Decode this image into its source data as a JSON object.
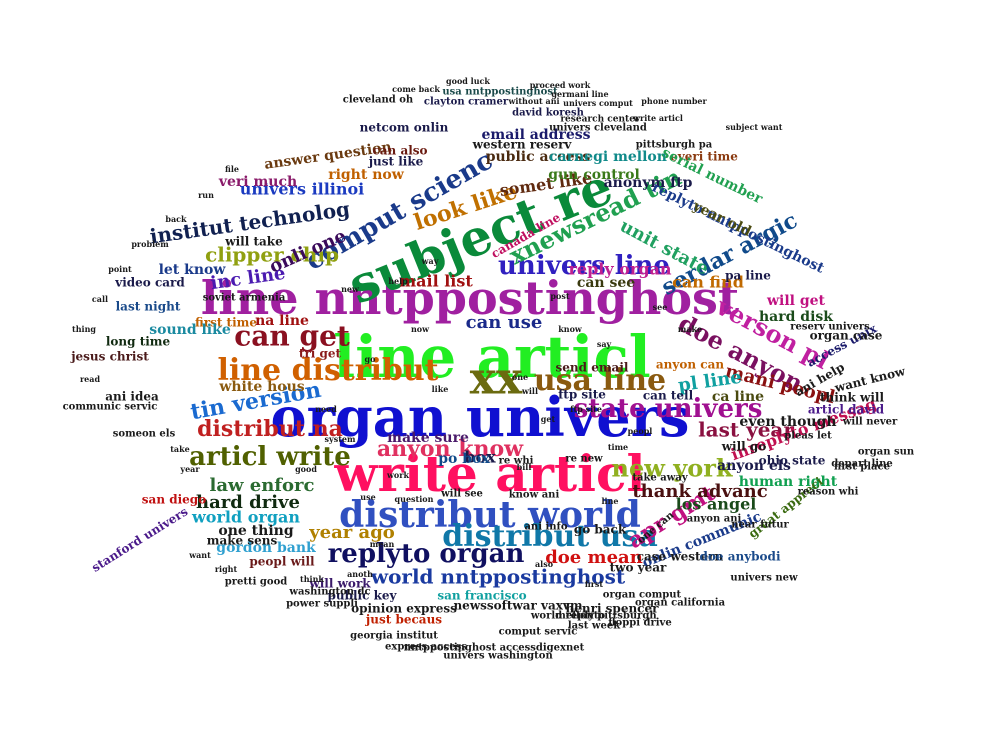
{
  "title": "",
  "words": [
    {
      "text": "line articl",
      "color": "#22ee22"
    },
    {
      "text": "line nntppostinghost",
      "color": "#a020a0"
    },
    {
      "text": "organ univers",
      "color": "#1010d0"
    },
    {
      "text": "write articl",
      "color": "#ff1060"
    },
    {
      "text": "subject re",
      "color": "#0a8a3a"
    },
    {
      "text": "distribut world",
      "color": "#3050c0"
    },
    {
      "text": "xx",
      "color": "#6b6b10"
    },
    {
      "text": "comput scienc",
      "color": "#1a3a8a"
    },
    {
      "text": "line distribut",
      "color": "#d06000"
    },
    {
      "text": "usa line",
      "color": "#8a5a10"
    },
    {
      "text": "univers line",
      "color": "#3020c0"
    },
    {
      "text": "replyto organ",
      "color": "#101060"
    },
    {
      "text": "distribut usa",
      "color": "#1078a8"
    },
    {
      "text": "can get",
      "color": "#8a1020"
    },
    {
      "text": "state univers",
      "color": "#a01090"
    },
    {
      "text": "new york",
      "color": "#90b020"
    },
    {
      "text": "articl write",
      "color": "#506000"
    },
    {
      "text": "xnewsread tin",
      "color": "#20a050"
    },
    {
      "text": "world nntppostinghost",
      "color": "#1a3aa0"
    },
    {
      "text": "doe anyon",
      "color": "#7a1060"
    },
    {
      "text": "verson pl",
      "color": "#c020a0"
    },
    {
      "text": "serdar argic",
      "color": "#104a8a"
    },
    {
      "text": "tin version",
      "color": "#1a6ad0"
    },
    {
      "text": "distribut na",
      "color": "#c02020"
    },
    {
      "text": "anyon know",
      "color": "#e03060"
    },
    {
      "text": "look like",
      "color": "#c07000"
    },
    {
      "text": "apr gmt",
      "color": "#c01080"
    },
    {
      "text": "last year",
      "color": "#8a1040"
    },
    {
      "text": "thank advanc",
      "color": "#4a1010"
    },
    {
      "text": "clipper chip",
      "color": "#90a010"
    },
    {
      "text": "institut technolog",
      "color": "#102050"
    },
    {
      "text": "unit state",
      "color": "#20a060"
    },
    {
      "text": "law enforc",
      "color": "#2a6a30"
    },
    {
      "text": "mail list",
      "color": "#a01010"
    },
    {
      "text": "doe mean",
      "color": "#d01010"
    },
    {
      "text": "year ago",
      "color": "#b08000"
    },
    {
      "text": "can use",
      "color": "#1a2a8a"
    },
    {
      "text": "hard drive",
      "color": "#102a10"
    },
    {
      "text": "somet like",
      "color": "#602a10"
    },
    {
      "text": "onli one",
      "color": "#3a0a5a"
    },
    {
      "text": "reply organ",
      "color": "#c02090"
    },
    {
      "text": "mani peopl",
      "color": "#8a1010"
    },
    {
      "text": "anyon els",
      "color": "#1a1a4a"
    },
    {
      "text": "los angel",
      "color": "#1a4a1a"
    },
    {
      "text": "inreplyto messag",
      "color": "#c01050"
    },
    {
      "text": "world organ",
      "color": "#10a0c0"
    },
    {
      "text": "gordon bank",
      "color": "#30a0d0"
    },
    {
      "text": "public access",
      "color": "#4a2a10"
    },
    {
      "text": "email address",
      "color": "#1a1a6a"
    },
    {
      "text": "carnegi mellon",
      "color": "#108a8a"
    },
    {
      "text": "gun control",
      "color": "#3a7a1a"
    },
    {
      "text": "univers illinoi",
      "color": "#1a3ac0"
    },
    {
      "text": "right now",
      "color": "#c06000"
    },
    {
      "text": "answer question",
      "color": "#6a3a10"
    },
    {
      "text": "anonym ftp",
      "color": "#1a1a4a"
    },
    {
      "text": "everi time",
      "color": "#8a3a10"
    },
    {
      "text": "make sure",
      "color": "#4a1a6a"
    },
    {
      "text": "can find",
      "color": "#c06a00"
    },
    {
      "text": "can see",
      "color": "#3a3a10"
    },
    {
      "text": "pl line",
      "color": "#10a0a0"
    },
    {
      "text": "hard disk",
      "color": "#1a4a1a"
    },
    {
      "text": "ca line",
      "color": "#4a4a10"
    },
    {
      "text": "even though",
      "color": "#1a1a1a"
    },
    {
      "text": "human right",
      "color": "#10a050"
    },
    {
      "text": "articl david",
      "color": "#4a1a8a"
    },
    {
      "text": "onlin communic",
      "color": "#1a3a8a"
    },
    {
      "text": "great appreci",
      "color": "#3a6a10"
    },
    {
      "text": "san diego",
      "color": "#c01010"
    },
    {
      "text": "san francisco",
      "color": "#10a0a0"
    },
    {
      "text": "inc line",
      "color": "#4a1ab0"
    },
    {
      "text": "white hous",
      "color": "#8a5a10"
    },
    {
      "text": "first time",
      "color": "#c06000"
    },
    {
      "text": "na line",
      "color": "#a01010"
    },
    {
      "text": "sound like",
      "color": "#1a8aa0"
    },
    {
      "text": "let know",
      "color": "#1a3a8a"
    },
    {
      "text": "video card",
      "color": "#1a1a4a"
    },
    {
      "text": "last night",
      "color": "#1a4a8a"
    },
    {
      "text": "long time",
      "color": "#102a10"
    },
    {
      "text": "jesus christ",
      "color": "#4a1a1a"
    },
    {
      "text": "replyto nntppostinghost",
      "color": "#1a3a8a"
    },
    {
      "text": "serial number",
      "color": "#20a050"
    },
    {
      "text": "one thing",
      "color": "#1a1a1a"
    },
    {
      "text": "box",
      "color": "#1a1a4a"
    },
    {
      "text": "po box",
      "color": "#104a8a"
    },
    {
      "text": "send email",
      "color": "#4a1a1a"
    },
    {
      "text": "peopl will",
      "color": "#6a1a1a"
    },
    {
      "text": "will work",
      "color": "#3a1a6a"
    },
    {
      "text": "public key",
      "color": "#1a1a4a"
    },
    {
      "text": "newssoftwar vaxvm",
      "color": "#1a1a1a"
    },
    {
      "text": "opinion express",
      "color": "#1a1a1a"
    },
    {
      "text": "henri spencer",
      "color": "#1a1a1a"
    },
    {
      "text": "just becaus",
      "color": "#c02000"
    },
    {
      "text": "can also",
      "color": "#6a1a10"
    },
    {
      "text": "just like",
      "color": "#1a1a4a"
    },
    {
      "text": "netcom onlin",
      "color": "#1a1a4a"
    },
    {
      "text": "western reserv",
      "color": "#1a1a1a"
    },
    {
      "text": "david koresh",
      "color": "#1a1a4a"
    },
    {
      "text": "clayton cramer",
      "color": "#1a1a4a"
    },
    {
      "text": "usa nntppostinghost",
      "color": "#1a4a4a"
    },
    {
      "text": "veri much",
      "color": "#8a1a6a"
    },
    {
      "text": "canada line",
      "color": "#c01060"
    },
    {
      "text": "ani idea",
      "color": "#1a1a1a"
    },
    {
      "text": "will take",
      "color": "#1a1a1a"
    },
    {
      "text": "two year",
      "color": "#1a1a1a"
    },
    {
      "text": "case western",
      "color": "#1a1a1a"
    },
    {
      "text": "doe anybodi",
      "color": "#1a4a8a"
    },
    {
      "text": "will get",
      "color": "#c01080"
    },
    {
      "text": "tri get",
      "color": "#8a1a1a"
    },
    {
      "text": "year old",
      "color": "#4a4a10"
    },
    {
      "text": "will go",
      "color": "#1a1a1a"
    },
    {
      "text": "can tell",
      "color": "#1a1a4a"
    },
    {
      "text": "ftp site",
      "color": "#1a1a4a"
    },
    {
      "text": "anyon can",
      "color": "#c06000"
    },
    {
      "text": "near futur",
      "color": "#1a1a1a"
    },
    {
      "text": "stanford univers",
      "color": "#4a1a8a"
    },
    {
      "text": "pa line",
      "color": "#1a1a4a"
    },
    {
      "text": "soviet armenia",
      "color": "#1a1a1a"
    },
    {
      "text": "ani help",
      "color": "#1a1a1a"
    },
    {
      "text": "ohio state",
      "color": "#1a1a4a"
    },
    {
      "text": "think will",
      "color": "#1a1a1a"
    },
    {
      "text": "want know",
      "color": "#1a1a1a"
    },
    {
      "text": "access unix",
      "color": "#1a1a6a"
    },
    {
      "text": "world replyto",
      "color": "#1a1a1a"
    },
    {
      "text": "georgia institut",
      "color": "#1a1a1a"
    },
    {
      "text": "nntppostinghost accessdigexnet",
      "color": "#1a1a1a"
    },
    {
      "text": "express access",
      "color": "#1a1a1a"
    },
    {
      "text": "univers washington",
      "color": "#1a1a1a"
    },
    {
      "text": "comput servic",
      "color": "#1a1a1a"
    },
    {
      "text": "last week",
      "color": "#1a1a1a"
    },
    {
      "text": "floppi drive",
      "color": "#1a1a1a"
    },
    {
      "text": "mellon pittsburgh",
      "color": "#1a1a1a"
    },
    {
      "text": "organ comput",
      "color": "#1a1a1a"
    },
    {
      "text": "organ california",
      "color": "#1a1a1a"
    },
    {
      "text": "make sens",
      "color": "#1a1a1a"
    },
    {
      "text": "pretti good",
      "color": "#1a1a1a"
    },
    {
      "text": "washington dc",
      "color": "#1a1a1a"
    },
    {
      "text": "power suppli",
      "color": "#1a1a1a"
    },
    {
      "text": "communic servic",
      "color": "#1a1a1a"
    },
    {
      "text": "someon els",
      "color": "#1a1a1a"
    },
    {
      "text": "know ani",
      "color": "#1a1a1a"
    },
    {
      "text": "will see",
      "color": "#1a1a1a"
    },
    {
      "text": "re whi",
      "color": "#1a1a1a"
    },
    {
      "text": "re new",
      "color": "#1a1a1a"
    },
    {
      "text": "ani info",
      "color": "#1a1a1a"
    },
    {
      "text": "go back",
      "color": "#1a1a1a"
    },
    {
      "text": "one can",
      "color": "#1a1a1a"
    },
    {
      "text": "anyon ani",
      "color": "#1a1a1a"
    },
    {
      "text": "take away",
      "color": "#1a1a1a"
    },
    {
      "text": "univers new",
      "color": "#1a1a1a"
    },
    {
      "text": "reason whi",
      "color": "#1a1a1a"
    },
    {
      "text": "first place",
      "color": "#1a1a1a"
    },
    {
      "text": "depart line",
      "color": "#1a1a1a"
    },
    {
      "text": "organ sun",
      "color": "#1a1a1a"
    },
    {
      "text": "pleas let",
      "color": "#1a1a1a"
    },
    {
      "text": "will never",
      "color": "#1a1a1a"
    },
    {
      "text": "organ case",
      "color": "#1a1a1a"
    },
    {
      "text": "reserv univers",
      "color": "#1a1a1a"
    },
    {
      "text": "good luck",
      "color": "#1a1a1a"
    },
    {
      "text": "subject want",
      "color": "#1a1a1a"
    },
    {
      "text": "univers cleveland",
      "color": "#1a1a1a"
    },
    {
      "text": "research center",
      "color": "#1a1a1a"
    },
    {
      "text": "pittsburgh pa",
      "color": "#1a1a1a"
    },
    {
      "text": "write articl",
      "color": "#1a1a1a"
    },
    {
      "text": "univers comput",
      "color": "#1a1a1a"
    },
    {
      "text": "cleveland oh",
      "color": "#1a1a1a"
    },
    {
      "text": "without ani",
      "color": "#1a1a1a"
    },
    {
      "text": "come back",
      "color": "#1a1a1a"
    },
    {
      "text": "germani line",
      "color": "#1a1a1a"
    },
    {
      "text": "proceed work",
      "color": "#1a1a1a"
    },
    {
      "text": "phone number",
      "color": "#1a1a1a"
    },
    {
      "text": "ftp site",
      "color": "#1a1a1a"
    },
    {
      "text": "bill",
      "color": "#1a1a1a"
    },
    {
      "text": "one",
      "color": "#1a1a1a"
    },
    {
      "text": "will",
      "color": "#1a1a1a"
    },
    {
      "text": "get",
      "color": "#1a1a1a"
    },
    {
      "text": "like",
      "color": "#1a1a1a"
    },
    {
      "text": "now",
      "color": "#1a1a1a"
    },
    {
      "text": "know",
      "color": "#1a1a1a"
    },
    {
      "text": "work",
      "color": "#1a1a1a"
    },
    {
      "text": "use",
      "color": "#1a1a1a"
    },
    {
      "text": "good",
      "color": "#1a1a1a"
    },
    {
      "text": "time",
      "color": "#1a1a1a"
    },
    {
      "text": "peopl",
      "color": "#1a1a1a"
    },
    {
      "text": "way",
      "color": "#1a1a1a"
    },
    {
      "text": "help",
      "color": "#1a1a1a"
    },
    {
      "text": "new",
      "color": "#1a1a1a"
    },
    {
      "text": "post",
      "color": "#1a1a1a"
    },
    {
      "text": "say",
      "color": "#1a1a1a"
    },
    {
      "text": "go",
      "color": "#1a1a1a"
    },
    {
      "text": "see",
      "color": "#1a1a1a"
    },
    {
      "text": "make",
      "color": "#1a1a1a"
    },
    {
      "text": "need",
      "color": "#1a1a1a"
    },
    {
      "text": "system",
      "color": "#1a1a1a"
    },
    {
      "text": "line",
      "color": "#1a1a1a"
    },
    {
      "text": "question",
      "color": "#1a1a1a"
    },
    {
      "text": "mean",
      "color": "#1a1a1a"
    },
    {
      "text": "also",
      "color": "#1a1a1a"
    },
    {
      "text": "first",
      "color": "#1a1a1a"
    },
    {
      "text": "anoth",
      "color": "#1a1a1a"
    },
    {
      "text": "think",
      "color": "#1a1a1a"
    },
    {
      "text": "right",
      "color": "#1a1a1a"
    },
    {
      "text": "want",
      "color": "#1a1a1a"
    },
    {
      "text": "year",
      "color": "#1a1a1a"
    },
    {
      "text": "take",
      "color": "#1a1a1a"
    },
    {
      "text": "read",
      "color": "#1a1a1a"
    },
    {
      "text": "thing",
      "color": "#1a1a1a"
    },
    {
      "text": "call",
      "color": "#1a1a1a"
    },
    {
      "text": "point",
      "color": "#1a1a1a"
    },
    {
      "text": "problem",
      "color": "#1a1a1a"
    },
    {
      "text": "back",
      "color": "#1a1a1a"
    },
    {
      "text": "run",
      "color": "#1a1a1a"
    },
    {
      "text": "file",
      "color": "#1a1a1a"
    }
  ]
}
